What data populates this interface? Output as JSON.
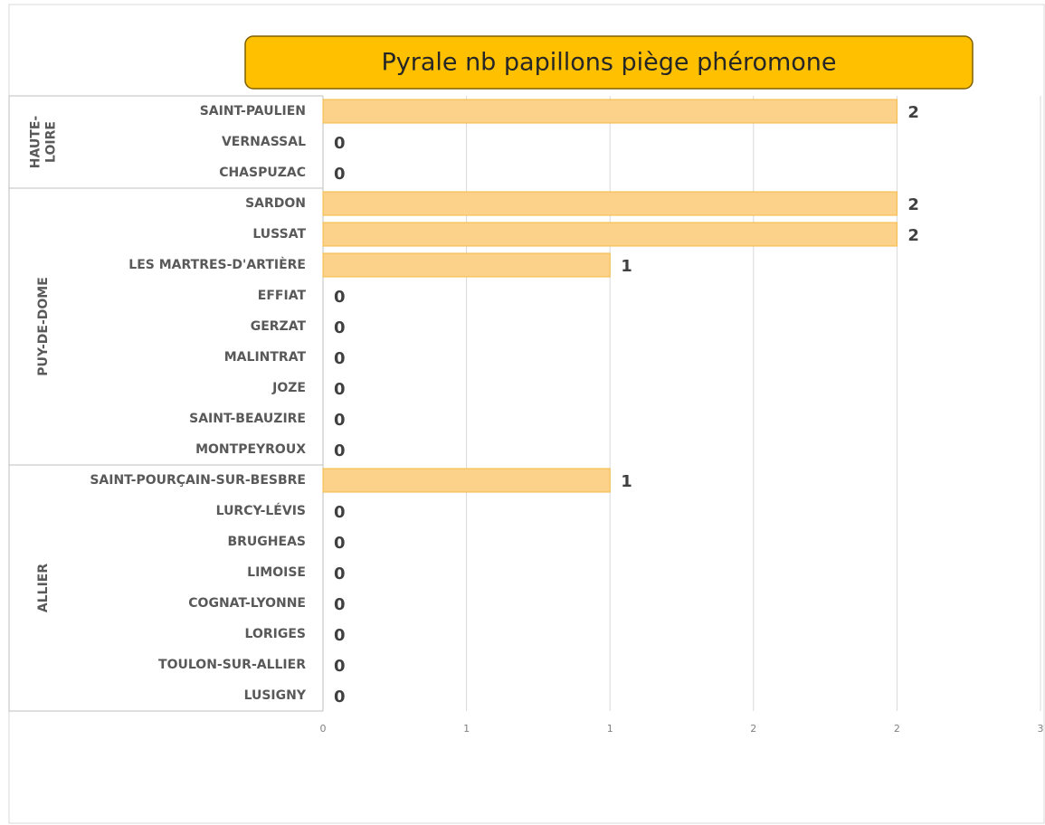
{
  "chart_data": {
    "type": "bar",
    "orientation": "horizontal",
    "title": "Pyrale nb papillons piège phéromone",
    "groups": [
      {
        "label": [
          "HAUTE-",
          "LOIRE"
        ],
        "categories": [
          "SAINT-PAULIEN",
          "VERNASSAL",
          "CHASPUZAC"
        ],
        "values": [
          2,
          0,
          0
        ]
      },
      {
        "label": [
          "PUY-DE-DOME"
        ],
        "categories": [
          "SARDON",
          "LUSSAT",
          "LES MARTRES-D'ARTIÈRE",
          "EFFIAT",
          "GERZAT",
          "MALINTRAT",
          "JOZE",
          "SAINT-BEAUZIRE",
          "MONTPEYROUX"
        ],
        "values": [
          2,
          2,
          1,
          0,
          0,
          0,
          0,
          0,
          0
        ]
      },
      {
        "label": [
          "ALLIER"
        ],
        "categories": [
          "SAINT-POURÇAIN-SUR-BESBRE",
          "LURCY-LÉVIS",
          "BRUGHEAS",
          "LIMOISE",
          "COGNAT-LYONNE",
          "LORIGES",
          "TOULON-SUR-ALLIER",
          "LUSIGNY"
        ],
        "values": [
          1,
          0,
          0,
          0,
          0,
          0,
          0,
          0
        ]
      }
    ],
    "color": "#fcd28a",
    "xlim": [
      0,
      2.5
    ],
    "xticks": [
      0,
      {
        "value": 0.5,
        "label": "1"
      },
      1,
      {
        "value": 1.5,
        "label": "2"
      },
      2,
      {
        "value": 2.5,
        "label": "3"
      }
    ],
    "grid": true
  }
}
